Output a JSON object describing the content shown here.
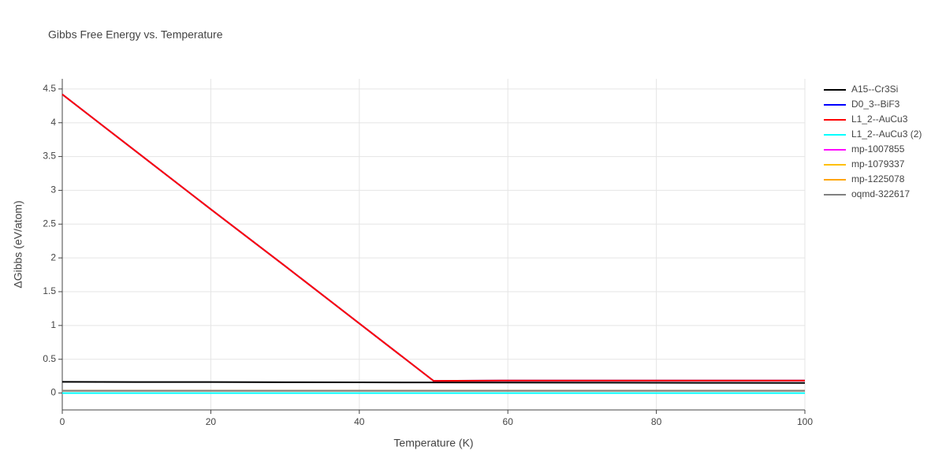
{
  "chart_data": {
    "type": "line",
    "title": "Gibbs Free Energy vs. Temperature",
    "x_label": "Temperature (K)",
    "y_label": "ΔGibbs (eV/atom)",
    "x": [
      0,
      10,
      20,
      30,
      40,
      50,
      60,
      70,
      80,
      90,
      100
    ],
    "xlim": [
      0,
      100
    ],
    "xticks": [
      0,
      20,
      40,
      60,
      80,
      100
    ],
    "ylim": [
      -0.25,
      4.65
    ],
    "yticks": [
      0,
      0.5,
      1,
      1.5,
      2,
      2.5,
      3,
      3.5,
      4,
      4.5
    ],
    "grid": true,
    "legend": "right",
    "series": [
      {
        "name": "A15--Cr3Si",
        "color": "#000000",
        "values": [
          0.165,
          0.163,
          0.162,
          0.16,
          0.158,
          0.157,
          0.155,
          0.154,
          0.152,
          0.151,
          0.15
        ]
      },
      {
        "name": "D0_3--BiF3",
        "color": "#0000ff",
        "values": [
          4.42,
          3.57,
          2.72,
          1.88,
          1.03,
          0.18,
          0.185,
          0.185,
          0.185,
          0.185,
          0.185
        ]
      },
      {
        "name": "L1_2--AuCu3",
        "color": "#ff0000",
        "values": [
          4.42,
          3.57,
          2.72,
          1.88,
          1.03,
          0.18,
          0.185,
          0.185,
          0.185,
          0.185,
          0.185
        ]
      },
      {
        "name": "L1_2--AuCu3 (2)",
        "color": "#00ffff",
        "values": [
          0,
          0,
          0,
          0,
          0,
          0,
          0,
          0,
          0,
          0,
          0
        ]
      },
      {
        "name": "mp-1007855",
        "color": "#ff00ff",
        "values": [
          0.035,
          0.035,
          0.035,
          0.035,
          0.035,
          0.035,
          0.035,
          0.035,
          0.035,
          0.035,
          0.035
        ]
      },
      {
        "name": "mp-1079337",
        "color": "#ffc000",
        "values": [
          0.035,
          0.035,
          0.035,
          0.035,
          0.035,
          0.035,
          0.035,
          0.035,
          0.035,
          0.035,
          0.035
        ]
      },
      {
        "name": "mp-1225078",
        "color": "#ffa500",
        "values": [
          0.035,
          0.035,
          0.035,
          0.035,
          0.035,
          0.035,
          0.035,
          0.035,
          0.035,
          0.035,
          0.035
        ]
      },
      {
        "name": "oqmd-322617",
        "color": "#808080",
        "values": [
          0.035,
          0.035,
          0.035,
          0.035,
          0.035,
          0.035,
          0.035,
          0.035,
          0.035,
          0.035,
          0.035
        ]
      }
    ]
  }
}
